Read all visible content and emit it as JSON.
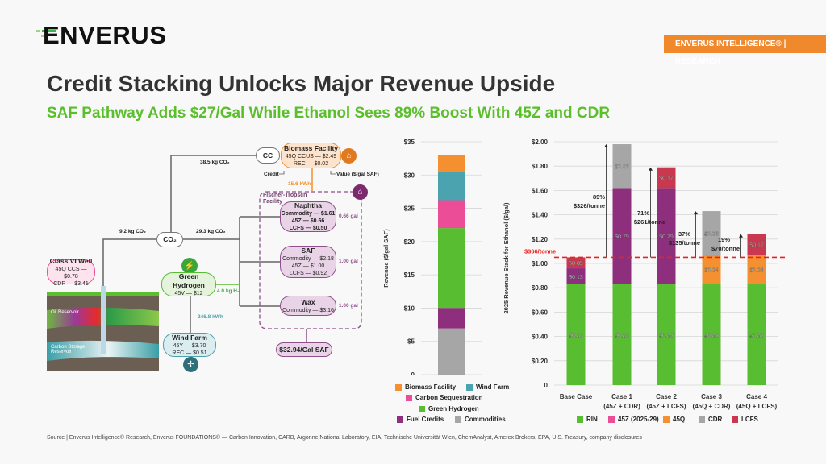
{
  "header": {
    "logo": "ENVERUS",
    "badge": "ENVERUS INTELLIGENCE® | RESEARCH",
    "title": "Credit Stacking Unlocks Major Revenue Upside",
    "subtitle": "SAF Pathway Adds $27/Gal While Ethanol Sees 89% Boost With 45Z and CDR"
  },
  "diagram": {
    "cc": "CC",
    "biomass": {
      "title": "Biomass Facility",
      "l1": "45Q CCUS — $2.49",
      "l2": "REC — $0.02"
    },
    "credit_label": "Credit",
    "value_label": "Value ($/gal SAF)",
    "kwh_biomass": "15.6 kWh",
    "ft_title": "Fischer-Tropsch Facility",
    "naphtha": {
      "title": "Naphtha",
      "l1": "Commodity — $1.61",
      "l2": "45Z — $0.66",
      "l3": "LCFS — $0.50",
      "gal": "0.66 gal"
    },
    "saf": {
      "title": "SAF",
      "l1": "Commodity — $2.18",
      "l2": "45Z — $1.00",
      "l3": "LCFS — $0.92",
      "gal": "1.00 gal"
    },
    "wax": {
      "title": "Wax",
      "l1": "Commodity — $3.16",
      "gal": "1.00 gal"
    },
    "total": "$32.94/Gal SAF",
    "co2": "CO₂",
    "flow_top": "38.5 kg CO₂",
    "flow_left": "9.2 kg CO₂",
    "flow_right": "29.3 kg CO₂",
    "well": {
      "title": "Class VI Well",
      "l1": "45Q CCS — $0.78",
      "l2": "CDR — $3.41"
    },
    "oil": "Oil Reservoir",
    "storage": "Carbon Storage Reservoir",
    "hydrogen": {
      "title": "Green Hydrogen",
      "l1": "45V — $12"
    },
    "h2_flow": "4.0 kg H₂",
    "kwh_wind": "246.8 kWh",
    "wind": {
      "title": "Wind Farm",
      "l1": "45Y — $3.70",
      "l2": "REC — $0.51"
    }
  },
  "chart_data": [
    {
      "type": "bar",
      "stacked": true,
      "ylabel": "Revenue ($/gal SAF)",
      "ylim": [
        0,
        35
      ],
      "yticks": [
        "0",
        "$5",
        "$10",
        "$15",
        "$20",
        "$25",
        "$30",
        "$35"
      ],
      "ytick_values": [
        0,
        5,
        10,
        15,
        20,
        25,
        30,
        35
      ],
      "grid": true,
      "series": [
        {
          "name": "Commodities",
          "value": 6.95,
          "color": "#a6a6a6"
        },
        {
          "name": "Fuel Credits",
          "value": 3.08,
          "color": "#8e2f7e"
        },
        {
          "name": "Green Hydrogen",
          "value": 12,
          "color": "#58bd30"
        },
        {
          "name": "Carbon Sequestration",
          "value": 4.19,
          "color": "#ec4d97"
        },
        {
          "name": "Wind Farm",
          "value": 4.21,
          "color": "#4aa3ae"
        },
        {
          "name": "Biomass Facility",
          "value": 2.51,
          "color": "#f4902f"
        }
      ],
      "legend": "bottom"
    },
    {
      "type": "bar",
      "stacked": true,
      "ylabel": "2025 Revenue Stack for Ethanol ($/gal)",
      "ylim": [
        0,
        2
      ],
      "yticks": [
        "0",
        "$0.20",
        "$0.40",
        "$0.60",
        "$0.80",
        "$1.00",
        "$1.20",
        "$1.40",
        "$1.60",
        "$1.80",
        "$2.00"
      ],
      "grid": true,
      "categories": [
        [
          "Base Case",
          ""
        ],
        [
          "Case 1",
          "(45Z + CDR)"
        ],
        [
          "Case 2",
          "(45Z + LCFS)"
        ],
        [
          "Case 3",
          "(45Q + CDR)"
        ],
        [
          "Case 4",
          "(45Q + LCFS)"
        ]
      ],
      "legend_items": [
        {
          "name": "RIN",
          "color": "#58bd30"
        },
        {
          "name": "45Z (2025-29)",
          "color": "#ec4d97"
        },
        {
          "name": "45Q",
          "color": "#f4902f"
        },
        {
          "name": "CDR",
          "color": "#a6a6a6"
        },
        {
          "name": "LCFS",
          "color": "#c8394f"
        }
      ],
      "stacks": [
        [
          {
            "series": "RIN",
            "value": 0.83,
            "label": "$0.83"
          },
          {
            "series": "45Z (2025-29)",
            "value": 0.13,
            "label": "$0.13",
            "color": "#8e2f7e"
          },
          {
            "series": "LCFS",
            "value": 0.09,
            "label": "$0.09"
          }
        ],
        [
          {
            "series": "RIN",
            "value": 0.83,
            "label": "$0.83"
          },
          {
            "series": "45Z (2025-29)",
            "value": 0.79,
            "label": "$0.79",
            "color": "#8e2f7e"
          },
          {
            "series": "CDR",
            "value": 0.36,
            "label": "$0.36"
          }
        ],
        [
          {
            "series": "RIN",
            "value": 0.83,
            "label": "$0.83"
          },
          {
            "series": "45Z (2025-29)",
            "value": 0.79,
            "label": "$0.79",
            "color": "#8e2f7e"
          },
          {
            "series": "LCFS",
            "value": 0.17,
            "label": "$0.17"
          }
        ],
        [
          {
            "series": "RIN",
            "value": 0.83,
            "label": "$0.83"
          },
          {
            "series": "45Q",
            "value": 0.24,
            "label": "$0.24"
          },
          {
            "series": "CDR",
            "value": 0.36,
            "label": "$0.36"
          }
        ],
        [
          {
            "series": "RIN",
            "value": 0.83,
            "label": "$0.83"
          },
          {
            "series": "45Q",
            "value": 0.24,
            "label": "$0.24"
          },
          {
            "series": "LCFS",
            "value": 0.17,
            "label": "$0.17"
          }
        ]
      ],
      "reference_line": {
        "value": 1.05,
        "label": "$366/tonne",
        "color": "#e8231f"
      },
      "annotations": [
        null,
        {
          "pct": "89%",
          "price": "$326/tonne"
        },
        {
          "pct": "71%",
          "price": "$261/tonne"
        },
        {
          "pct": "37%",
          "price": "$135/tonne"
        },
        {
          "pct": "19%",
          "price": "$70/tonne"
        }
      ],
      "legend": "bottom"
    }
  ],
  "footer": "Source | Enverus Intelligence® Research, Enverus FOUNDATIONS® — Carbon Innovation, CARB, Argonne National Laboratory, EIA, Technische Universität Wien, ChemAnalyst, Amerex Brokers, EPA, U.S. Treasury, company disclosures"
}
